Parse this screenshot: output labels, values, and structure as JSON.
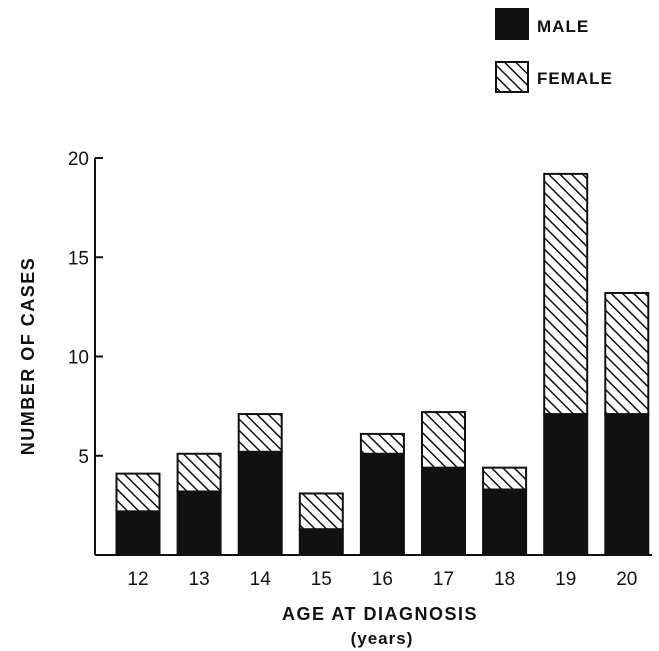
{
  "chart_data": {
    "type": "bar",
    "stacked": true,
    "categories": [
      "12",
      "13",
      "14",
      "15",
      "16",
      "17",
      "18",
      "19",
      "20"
    ],
    "series": [
      {
        "name": "MALE",
        "pattern": "solid",
        "color": "#111111",
        "values": [
          2.2,
          3.2,
          5.2,
          1.3,
          5.1,
          4.4,
          3.3,
          7.1,
          7.1
        ]
      },
      {
        "name": "FEMALE",
        "pattern": "hatched",
        "color": "#111111",
        "values": [
          1.9,
          1.9,
          1.9,
          1.8,
          1.0,
          2.8,
          1.1,
          12.1,
          6.1
        ]
      }
    ],
    "ylim": [
      0,
      20
    ],
    "yticks": [
      "5",
      "10",
      "15",
      "20"
    ],
    "ylabel": "NUMBER OF CASES",
    "xlabel": "AGE AT DIAGNOSIS",
    "xlabel_sub": "(years)",
    "title": "",
    "grid": false,
    "legend_position": "top-right"
  }
}
